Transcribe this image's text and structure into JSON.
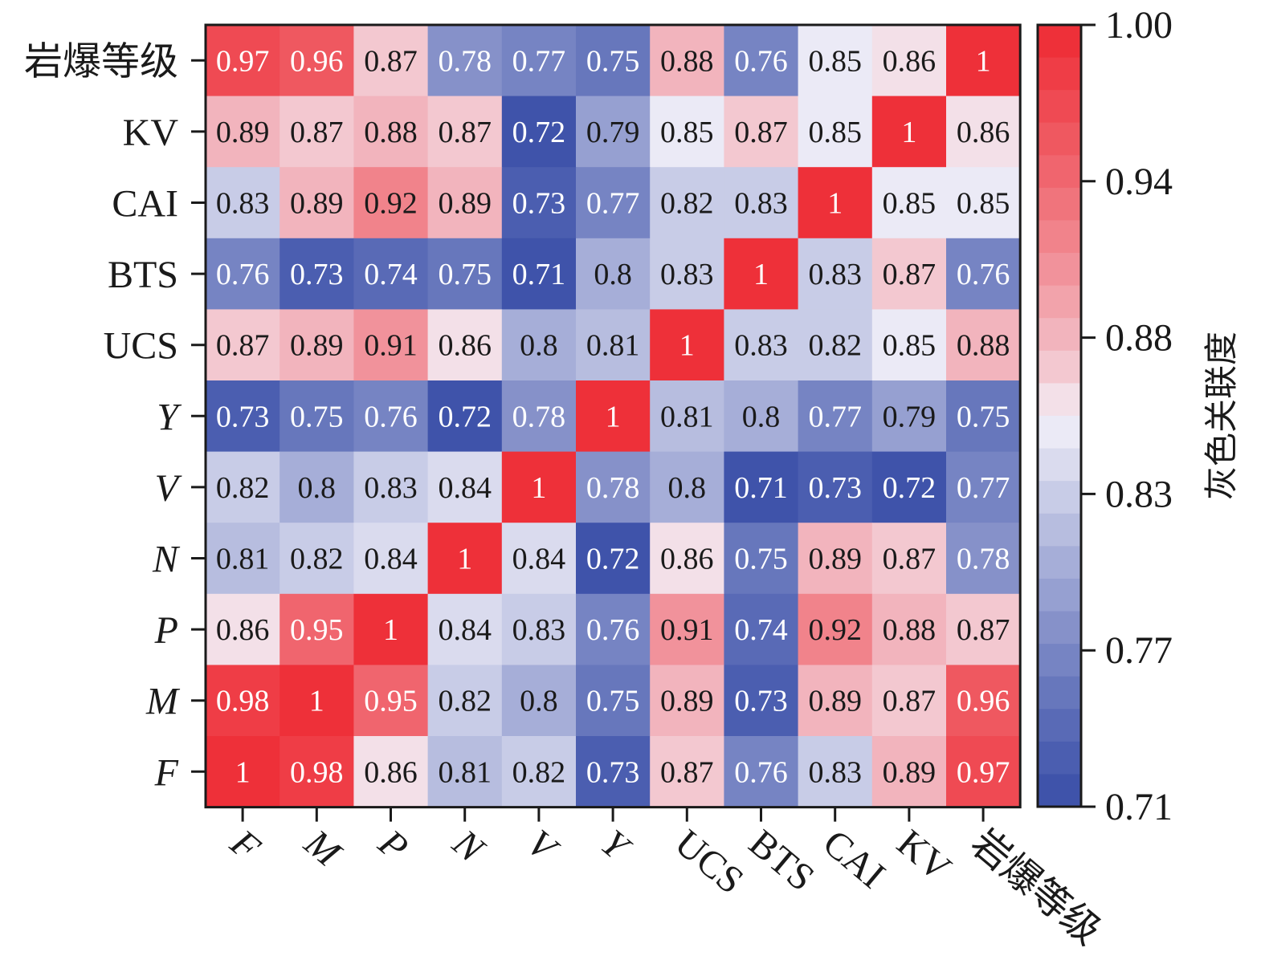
{
  "chart_data": {
    "type": "heatmap",
    "x_labels": [
      "F",
      "M",
      "P",
      "N",
      "V",
      "Y",
      "UCS",
      "BTS",
      "CAI",
      "KV",
      "岩爆等级"
    ],
    "y_labels": [
      "岩爆等级",
      "KV",
      "CAI",
      "BTS",
      "UCS",
      "Y",
      "V",
      "N",
      "P",
      "M",
      "F"
    ],
    "italic_labels": [
      "F",
      "M",
      "P",
      "N",
      "V",
      "Y"
    ],
    "values": [
      [
        "0.97",
        "0.96",
        "0.87",
        "0.78",
        "0.77",
        "0.75",
        "0.88",
        "0.76",
        "0.85",
        "0.86",
        "1"
      ],
      [
        "0.89",
        "0.87",
        "0.88",
        "0.87",
        "0.72",
        "0.79",
        "0.85",
        "0.87",
        "0.85",
        "1",
        "0.86"
      ],
      [
        "0.83",
        "0.89",
        "0.92",
        "0.89",
        "0.73",
        "0.77",
        "0.82",
        "0.83",
        "1",
        "0.85",
        "0.85"
      ],
      [
        "0.76",
        "0.73",
        "0.74",
        "0.75",
        "0.71",
        "0.8",
        "0.83",
        "1",
        "0.83",
        "0.87",
        "0.76"
      ],
      [
        "0.87",
        "0.89",
        "0.91",
        "0.86",
        "0.8",
        "0.81",
        "1",
        "0.83",
        "0.82",
        "0.85",
        "0.88"
      ],
      [
        "0.73",
        "0.75",
        "0.76",
        "0.72",
        "0.78",
        "1",
        "0.81",
        "0.8",
        "0.77",
        "0.79",
        "0.75"
      ],
      [
        "0.82",
        "0.8",
        "0.83",
        "0.84",
        "1",
        "0.78",
        "0.8",
        "0.71",
        "0.73",
        "0.72",
        "0.77"
      ],
      [
        "0.81",
        "0.82",
        "0.84",
        "1",
        "0.84",
        "0.72",
        "0.86",
        "0.75",
        "0.89",
        "0.87",
        "0.78"
      ],
      [
        "0.86",
        "0.95",
        "1",
        "0.84",
        "0.83",
        "0.76",
        "0.91",
        "0.74",
        "0.92",
        "0.88",
        "0.87"
      ],
      [
        "0.98",
        "1",
        "0.95",
        "0.82",
        "0.8",
        "0.75",
        "0.89",
        "0.73",
        "0.89",
        "0.87",
        "0.96"
      ],
      [
        "1",
        "0.98",
        "0.86",
        "0.81",
        "0.82",
        "0.73",
        "0.87",
        "0.76",
        "0.83",
        "0.89",
        "0.97"
      ]
    ],
    "colorbar": {
      "label": "灰色关联度",
      "min": 0.71,
      "max": 1.0,
      "ticks": [
        "1.00",
        "0.94",
        "0.88",
        "0.83",
        "0.77",
        "0.71"
      ],
      "tick_values": [
        1.0,
        0.94,
        0.88,
        0.83,
        0.77,
        0.71
      ],
      "colors": {
        "low": "#3a4fa8",
        "mid": "#f4f2fa",
        "high": "#ee2a33"
      }
    }
  }
}
